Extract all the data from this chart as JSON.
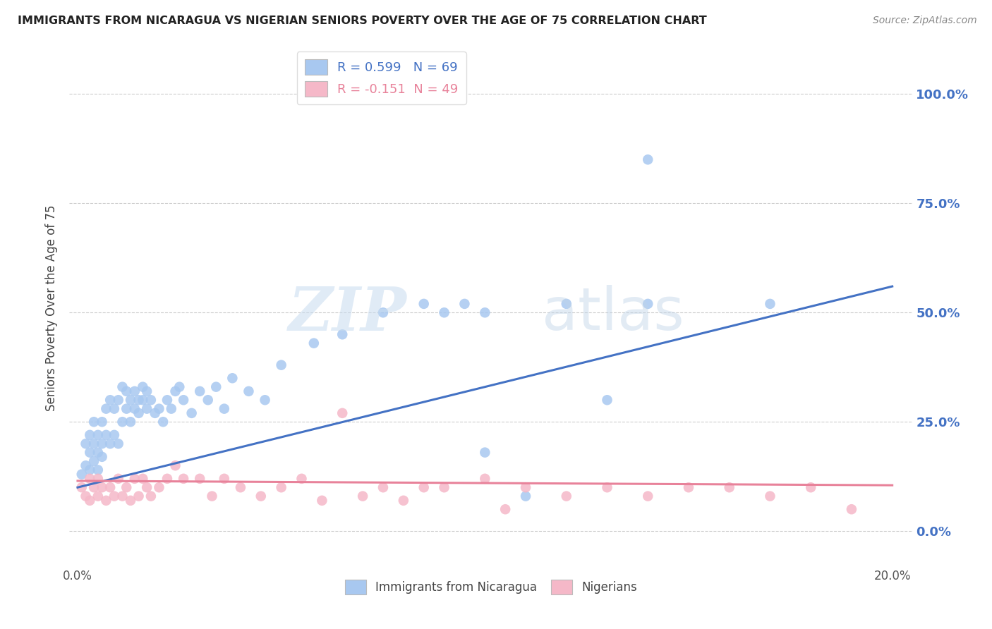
{
  "title": "IMMIGRANTS FROM NICARAGUA VS NIGERIAN SENIORS POVERTY OVER THE AGE OF 75 CORRELATION CHART",
  "source": "Source: ZipAtlas.com",
  "ylabel": "Seniors Poverty Over the Age of 75",
  "blue_R": 0.599,
  "blue_N": 69,
  "pink_R": -0.151,
  "pink_N": 49,
  "blue_color": "#A8C8F0",
  "pink_color": "#F5B8C8",
  "blue_line_color": "#4472C4",
  "pink_line_color": "#E8829A",
  "legend_blue_label": "R = 0.599   N = 69",
  "legend_pink_label": "R = -0.151  N = 49",
  "bottom_legend_blue": "Immigrants from Nicaragua",
  "bottom_legend_pink": "Nigerians",
  "background_color": "#ffffff",
  "blue_points_x": [
    0.001,
    0.002,
    0.002,
    0.003,
    0.003,
    0.003,
    0.004,
    0.004,
    0.004,
    0.005,
    0.005,
    0.005,
    0.006,
    0.006,
    0.006,
    0.007,
    0.007,
    0.008,
    0.008,
    0.009,
    0.009,
    0.01,
    0.01,
    0.011,
    0.011,
    0.012,
    0.012,
    0.013,
    0.013,
    0.014,
    0.014,
    0.015,
    0.015,
    0.016,
    0.016,
    0.017,
    0.017,
    0.018,
    0.019,
    0.02,
    0.021,
    0.022,
    0.023,
    0.024,
    0.025,
    0.026,
    0.028,
    0.03,
    0.032,
    0.034,
    0.036,
    0.038,
    0.042,
    0.046,
    0.05,
    0.058,
    0.065,
    0.075,
    0.085,
    0.09,
    0.1,
    0.11,
    0.12,
    0.095,
    0.13,
    0.14,
    0.1,
    0.17,
    0.14
  ],
  "blue_points_y": [
    0.13,
    0.15,
    0.2,
    0.14,
    0.18,
    0.22,
    0.16,
    0.2,
    0.25,
    0.14,
    0.18,
    0.22,
    0.17,
    0.2,
    0.25,
    0.22,
    0.28,
    0.2,
    0.3,
    0.22,
    0.28,
    0.2,
    0.3,
    0.25,
    0.33,
    0.28,
    0.32,
    0.25,
    0.3,
    0.28,
    0.32,
    0.3,
    0.27,
    0.3,
    0.33,
    0.28,
    0.32,
    0.3,
    0.27,
    0.28,
    0.25,
    0.3,
    0.28,
    0.32,
    0.33,
    0.3,
    0.27,
    0.32,
    0.3,
    0.33,
    0.28,
    0.35,
    0.32,
    0.3,
    0.38,
    0.43,
    0.45,
    0.5,
    0.52,
    0.5,
    0.5,
    0.08,
    0.52,
    0.52,
    0.3,
    0.52,
    0.18,
    0.52,
    0.85
  ],
  "pink_points_x": [
    0.001,
    0.002,
    0.003,
    0.003,
    0.004,
    0.005,
    0.005,
    0.006,
    0.007,
    0.008,
    0.009,
    0.01,
    0.011,
    0.012,
    0.013,
    0.014,
    0.015,
    0.016,
    0.017,
    0.018,
    0.02,
    0.022,
    0.024,
    0.026,
    0.03,
    0.033,
    0.036,
    0.04,
    0.045,
    0.05,
    0.055,
    0.06,
    0.065,
    0.07,
    0.075,
    0.08,
    0.085,
    0.09,
    0.1,
    0.105,
    0.11,
    0.12,
    0.13,
    0.14,
    0.15,
    0.16,
    0.17,
    0.18,
    0.19
  ],
  "pink_points_y": [
    0.1,
    0.08,
    0.12,
    0.07,
    0.1,
    0.12,
    0.08,
    0.1,
    0.07,
    0.1,
    0.08,
    0.12,
    0.08,
    0.1,
    0.07,
    0.12,
    0.08,
    0.12,
    0.1,
    0.08,
    0.1,
    0.12,
    0.15,
    0.12,
    0.12,
    0.08,
    0.12,
    0.1,
    0.08,
    0.1,
    0.12,
    0.07,
    0.27,
    0.08,
    0.1,
    0.07,
    0.1,
    0.1,
    0.12,
    0.05,
    0.1,
    0.08,
    0.1,
    0.08,
    0.1,
    0.1,
    0.08,
    0.1,
    0.05
  ],
  "blue_line_x0": 0.0,
  "blue_line_x1": 0.2,
  "blue_line_y0": 0.1,
  "blue_line_y1": 0.56,
  "pink_line_x0": 0.0,
  "pink_line_x1": 0.2,
  "pink_line_y0": 0.115,
  "pink_line_y1": 0.105,
  "xlim_min": -0.002,
  "xlim_max": 0.205,
  "ylim_min": -0.08,
  "ylim_max": 1.1,
  "yticks": [
    0.0,
    0.25,
    0.5,
    0.75,
    1.0
  ],
  "ytick_labels_right": [
    "0.0%",
    "25.0%",
    "50.0%",
    "75.0%",
    "100.0%"
  ]
}
